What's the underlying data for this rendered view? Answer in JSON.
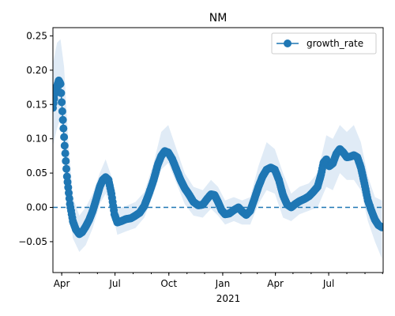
{
  "chart_data": {
    "type": "line",
    "title": "NM",
    "xlabel": "",
    "ylabel": "",
    "x_year_label": "2021",
    "xlim": [
      "2020-03-17",
      "2021-10-02"
    ],
    "ylim": [
      -0.095,
      0.262
    ],
    "x_ticks": [
      {
        "date": "2020-04-01",
        "label": "Apr"
      },
      {
        "date": "2020-07-01",
        "label": "Jul"
      },
      {
        "date": "2020-10-01",
        "label": "Oct"
      },
      {
        "date": "2021-01-01",
        "label": "Jan"
      },
      {
        "date": "2021-04-01",
        "label": "Apr"
      },
      {
        "date": "2021-07-01",
        "label": "Jul"
      }
    ],
    "y_ticks": [
      -0.05,
      0.0,
      0.05,
      0.1,
      0.15,
      0.2,
      0.25
    ],
    "y_tick_labels": [
      "−0.05",
      "0.00",
      "0.05",
      "0.10",
      "0.15",
      "0.20",
      "0.25"
    ],
    "reference_line": {
      "y": 0.0,
      "style": "dashed"
    },
    "legend": {
      "position": "top-right",
      "entries": [
        "growth_rate"
      ]
    },
    "colors": {
      "line": "#1f77b4",
      "band": "#dbe8f4",
      "reference": "#1f77b4"
    },
    "series": [
      {
        "name": "growth_rate",
        "points": [
          [
            "2020-03-17",
            0.145
          ],
          [
            "2020-03-20",
            0.165
          ],
          [
            "2020-03-24",
            0.177
          ],
          [
            "2020-03-27",
            0.185
          ],
          [
            "2020-03-30",
            0.18
          ],
          [
            "2020-04-02",
            0.14
          ],
          [
            "2020-04-06",
            0.09
          ],
          [
            "2020-04-10",
            0.045
          ],
          [
            "2020-04-15",
            0.005
          ],
          [
            "2020-04-20",
            -0.02
          ],
          [
            "2020-04-25",
            -0.032
          ],
          [
            "2020-05-01",
            -0.039
          ],
          [
            "2020-05-06",
            -0.036
          ],
          [
            "2020-05-12",
            -0.028
          ],
          [
            "2020-05-18",
            -0.018
          ],
          [
            "2020-05-24",
            -0.005
          ],
          [
            "2020-05-30",
            0.012
          ],
          [
            "2020-06-05",
            0.03
          ],
          [
            "2020-06-10",
            0.04
          ],
          [
            "2020-06-15",
            0.044
          ],
          [
            "2020-06-20",
            0.04
          ],
          [
            "2020-06-25",
            0.02
          ],
          [
            "2020-06-30",
            -0.01
          ],
          [
            "2020-07-05",
            -0.022
          ],
          [
            "2020-07-12",
            -0.02
          ],
          [
            "2020-07-20",
            -0.017
          ],
          [
            "2020-07-28",
            -0.016
          ],
          [
            "2020-08-05",
            -0.012
          ],
          [
            "2020-08-12",
            -0.008
          ],
          [
            "2020-08-20",
            0.002
          ],
          [
            "2020-08-28",
            0.02
          ],
          [
            "2020-09-05",
            0.04
          ],
          [
            "2020-09-12",
            0.062
          ],
          [
            "2020-09-18",
            0.075
          ],
          [
            "2020-09-24",
            0.082
          ],
          [
            "2020-09-30",
            0.08
          ],
          [
            "2020-10-07",
            0.07
          ],
          [
            "2020-10-14",
            0.055
          ],
          [
            "2020-10-21",
            0.04
          ],
          [
            "2020-10-28",
            0.028
          ],
          [
            "2020-11-05",
            0.018
          ],
          [
            "2020-11-12",
            0.008
          ],
          [
            "2020-11-20",
            0.003
          ],
          [
            "2020-11-28",
            0.004
          ],
          [
            "2020-12-05",
            0.012
          ],
          [
            "2020-12-12",
            0.019
          ],
          [
            "2020-12-18",
            0.018
          ],
          [
            "2020-12-24",
            0.008
          ],
          [
            "2020-12-30",
            -0.004
          ],
          [
            "2021-01-05",
            -0.01
          ],
          [
            "2021-01-12",
            -0.009
          ],
          [
            "2021-01-20",
            -0.004
          ],
          [
            "2021-01-28",
            0.0
          ],
          [
            "2021-02-03",
            -0.006
          ],
          [
            "2021-02-10",
            -0.011
          ],
          [
            "2021-02-17",
            -0.005
          ],
          [
            "2021-02-24",
            0.012
          ],
          [
            "2021-03-03",
            0.03
          ],
          [
            "2021-03-10",
            0.045
          ],
          [
            "2021-03-17",
            0.055
          ],
          [
            "2021-03-24",
            0.058
          ],
          [
            "2021-03-31",
            0.055
          ],
          [
            "2021-04-07",
            0.04
          ],
          [
            "2021-04-14",
            0.018
          ],
          [
            "2021-04-21",
            0.004
          ],
          [
            "2021-04-28",
            0.0
          ],
          [
            "2021-05-05",
            0.005
          ],
          [
            "2021-05-12",
            0.009
          ],
          [
            "2021-05-20",
            0.012
          ],
          [
            "2021-05-28",
            0.016
          ],
          [
            "2021-06-04",
            0.022
          ],
          [
            "2021-06-12",
            0.03
          ],
          [
            "2021-06-18",
            0.048
          ],
          [
            "2021-06-22",
            0.065
          ],
          [
            "2021-06-27",
            0.07
          ],
          [
            "2021-07-02",
            0.06
          ],
          [
            "2021-07-08",
            0.064
          ],
          [
            "2021-07-14",
            0.078
          ],
          [
            "2021-07-20",
            0.085
          ],
          [
            "2021-07-26",
            0.08
          ],
          [
            "2021-08-01",
            0.073
          ],
          [
            "2021-08-07",
            0.074
          ],
          [
            "2021-08-13",
            0.076
          ],
          [
            "2021-08-19",
            0.073
          ],
          [
            "2021-08-25",
            0.058
          ],
          [
            "2021-08-31",
            0.035
          ],
          [
            "2021-09-06",
            0.01
          ],
          [
            "2021-09-12",
            -0.005
          ],
          [
            "2021-09-18",
            -0.018
          ],
          [
            "2021-09-24",
            -0.026
          ],
          [
            "2021-09-30",
            -0.029
          ]
        ]
      }
    ],
    "band": {
      "name": "uncertainty",
      "points": [
        [
          "2020-03-17",
          0.09,
          0.21
        ],
        [
          "2020-03-24",
          0.115,
          0.24
        ],
        [
          "2020-03-30",
          0.13,
          0.245
        ],
        [
          "2020-04-05",
          0.09,
          0.205
        ],
        [
          "2020-04-12",
          0.02,
          0.1
        ],
        [
          "2020-04-20",
          -0.045,
          0.015
        ],
        [
          "2020-05-01",
          -0.065,
          -0.012
        ],
        [
          "2020-05-12",
          -0.055,
          0.0
        ],
        [
          "2020-05-24",
          -0.03,
          0.02
        ],
        [
          "2020-06-05",
          0.005,
          0.05
        ],
        [
          "2020-06-15",
          0.02,
          0.07
        ],
        [
          "2020-06-25",
          0.0,
          0.045
        ],
        [
          "2020-07-05",
          -0.04,
          -0.002
        ],
        [
          "2020-07-20",
          -0.035,
          0.002
        ],
        [
          "2020-08-05",
          -0.03,
          0.008
        ],
        [
          "2020-08-20",
          -0.015,
          0.022
        ],
        [
          "2020-09-05",
          0.02,
          0.065
        ],
        [
          "2020-09-18",
          0.055,
          0.11
        ],
        [
          "2020-09-30",
          0.065,
          0.12
        ],
        [
          "2020-10-14",
          0.035,
          0.085
        ],
        [
          "2020-10-28",
          0.005,
          0.05
        ],
        [
          "2020-11-12",
          -0.012,
          0.03
        ],
        [
          "2020-11-28",
          -0.015,
          0.025
        ],
        [
          "2020-12-12",
          -0.002,
          0.04
        ],
        [
          "2020-12-24",
          -0.012,
          0.03
        ],
        [
          "2021-01-05",
          -0.025,
          0.01
        ],
        [
          "2021-01-20",
          -0.02,
          0.015
        ],
        [
          "2021-02-03",
          -0.025,
          0.01
        ],
        [
          "2021-02-17",
          -0.025,
          0.015
        ],
        [
          "2021-03-03",
          0.005,
          0.06
        ],
        [
          "2021-03-17",
          0.025,
          0.095
        ],
        [
          "2021-03-31",
          0.02,
          0.085
        ],
        [
          "2021-04-14",
          -0.015,
          0.05
        ],
        [
          "2021-04-28",
          -0.02,
          0.02
        ],
        [
          "2021-05-12",
          -0.01,
          0.03
        ],
        [
          "2021-05-28",
          -0.005,
          0.035
        ],
        [
          "2021-06-12",
          0.0,
          0.05
        ],
        [
          "2021-06-27",
          0.03,
          0.105
        ],
        [
          "2021-07-08",
          0.025,
          0.1
        ],
        [
          "2021-07-20",
          0.05,
          0.12
        ],
        [
          "2021-08-01",
          0.04,
          0.11
        ],
        [
          "2021-08-13",
          0.04,
          0.12
        ],
        [
          "2021-08-25",
          0.025,
          0.095
        ],
        [
          "2021-09-06",
          -0.02,
          0.045
        ],
        [
          "2021-09-18",
          -0.05,
          0.015
        ],
        [
          "2021-09-30",
          -0.075,
          0.01
        ]
      ]
    }
  }
}
